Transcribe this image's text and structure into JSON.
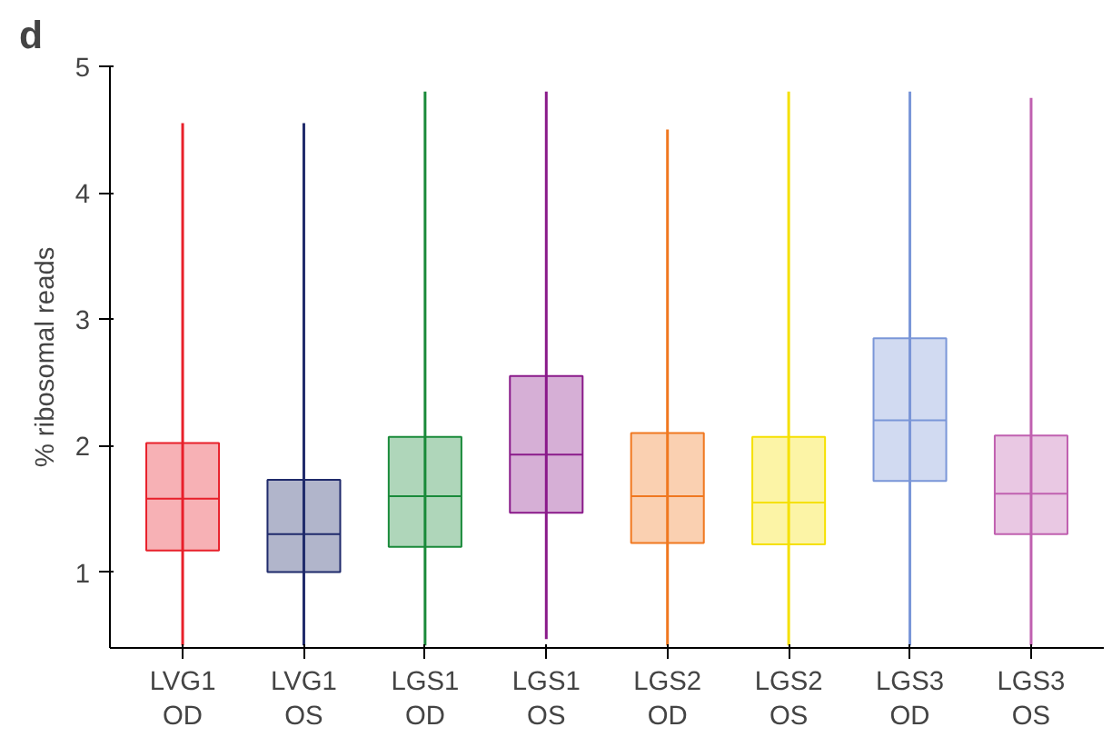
{
  "chart_data": {
    "type": "box",
    "ylabel": "% ribosomal reads",
    "annotations": [
      "d"
    ],
    "categories": [
      "LVG1\nOD",
      "LVG1\nOS",
      "LGS1\nOD",
      "LGS1\nOS",
      "LGS2\nOD",
      "LGS2\nOS",
      "LGS3\nOD",
      "LGS3\nOS"
    ],
    "colors": [
      "#e8202a",
      "#1f2a6b",
      "#1a8a3a",
      "#8a1a8a",
      "#f07820",
      "#f5e000",
      "#7a96d8",
      "#c060b0"
    ],
    "boxes": [
      {
        "low": 0.42,
        "q1": 1.17,
        "median": 1.58,
        "q3": 2.02,
        "high": 4.55
      },
      {
        "low": 0.42,
        "q1": 1.0,
        "median": 1.3,
        "q3": 1.73,
        "high": 4.55
      },
      {
        "low": 0.42,
        "q1": 1.2,
        "median": 1.6,
        "q3": 2.07,
        "high": 4.8
      },
      {
        "low": 0.47,
        "q1": 1.47,
        "median": 1.93,
        "q3": 2.55,
        "high": 4.8
      },
      {
        "low": 0.42,
        "q1": 1.23,
        "median": 1.6,
        "q3": 2.1,
        "high": 4.5
      },
      {
        "low": 0.42,
        "q1": 1.22,
        "median": 1.55,
        "q3": 2.07,
        "high": 4.8
      },
      {
        "low": 0.42,
        "q1": 1.72,
        "median": 2.2,
        "q3": 2.85,
        "high": 4.8
      },
      {
        "low": 0.42,
        "q1": 1.3,
        "median": 1.62,
        "q3": 2.08,
        "high": 4.75
      }
    ],
    "ylim": [
      0.4,
      5
    ],
    "yticks": [
      1,
      2,
      3,
      4,
      5
    ],
    "grid": false
  }
}
